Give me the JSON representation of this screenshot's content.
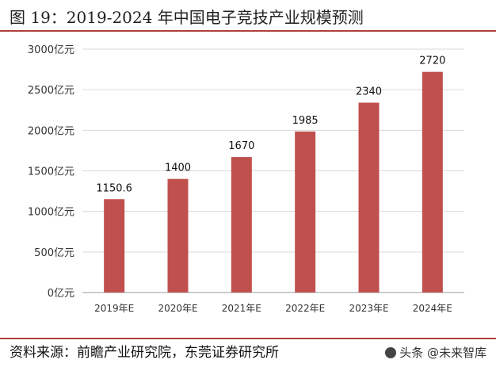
{
  "header": {
    "title": "图 19：2019-2024 年中国电子竞技产业规模预测"
  },
  "footer": {
    "source": "资料来源：前瞻产业研究院，东莞证券研究所",
    "watermark": "头条 @未来智库"
  },
  "colors": {
    "bar": "#c0504d",
    "accent_rule": "#b0413e",
    "grid": "#d9d9d9"
  },
  "chart_data": {
    "type": "bar",
    "categories": [
      "2019年E",
      "2020年E",
      "2021年E",
      "2022年E",
      "2023年E",
      "2024年E"
    ],
    "values": [
      1150.6,
      1400,
      1670,
      1985,
      2340,
      2720
    ],
    "data_labels": [
      "1150.6",
      "1400",
      "1670",
      "1985",
      "2340",
      "2720"
    ],
    "ylim": [
      0,
      3000
    ],
    "yticks": [
      0,
      500,
      1000,
      1500,
      2000,
      2500,
      3000
    ],
    "ytick_labels": [
      "0亿元",
      "500亿元",
      "1000亿元",
      "1500亿元",
      "2000亿元",
      "2500亿元",
      "3000亿元"
    ],
    "grid": true
  }
}
